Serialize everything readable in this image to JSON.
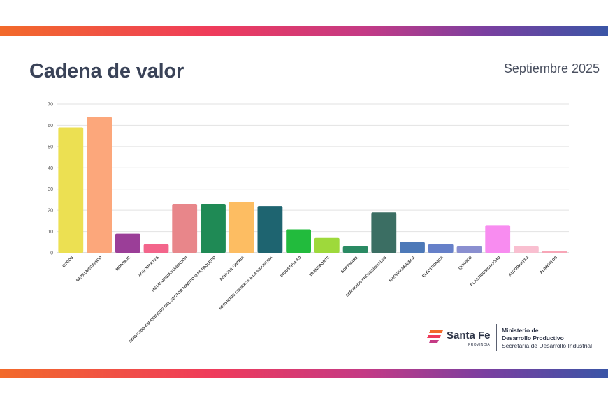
{
  "header": {
    "title": "Cadena de valor",
    "date": "Septiembre 2025"
  },
  "footer": {
    "brand": "Santa Fe",
    "brand_sub": "PROVINCIA",
    "ministry_line1": "Ministerio de",
    "ministry_line2": "Desarrollo Productivo",
    "secretariat": "Secretaría de Desarrollo Industrial"
  },
  "colors": {
    "stripe_start": "#f26a2a",
    "stripe_end": "#3a55a6",
    "title": "#3a4358"
  },
  "chart_data": {
    "type": "bar",
    "title": "",
    "xlabel": "",
    "ylabel": "",
    "ylim": [
      0,
      70
    ],
    "yticks": [
      0,
      10,
      20,
      30,
      40,
      50,
      60,
      70
    ],
    "grid": true,
    "categories": [
      "OTROS",
      "METALMECANICO",
      "MONTAJE",
      "AGROPARTES",
      "METALURGIA/FUNDICION",
      "SERVICIOS ESPECIFICOS DEL SECTOR MINERO O PETROLERO",
      "AGROINDUSTRIA",
      "SERVICIOS CONEXOS A LA INDUSTRIA",
      "INDUSTRIA 4.0",
      "TRANSPORTE",
      "SOFTWARE",
      "SERVICIOS PROFESIONALES",
      "MADERA/MUEBLE",
      "ELECTRONICA",
      "QUIMICO",
      "PLASTICOS/CAUCHO",
      "AUTOPARTES",
      "ALIMENTOS"
    ],
    "values": [
      59,
      64,
      9,
      4,
      23,
      23,
      24,
      22,
      11,
      7,
      3,
      19,
      5,
      4,
      3,
      13,
      3,
      1
    ],
    "bar_colors": [
      "#ece052",
      "#fca77b",
      "#9b3e98",
      "#f3658b",
      "#e8868a",
      "#1f8a55",
      "#fdbd62",
      "#1e6470",
      "#22bb3d",
      "#9ed93b",
      "#2a8a63",
      "#3b6e63",
      "#4d79b8",
      "#6680c9",
      "#8a8fd0",
      "#f88cf0",
      "#f9bfd0",
      "#f8a6b7"
    ]
  }
}
